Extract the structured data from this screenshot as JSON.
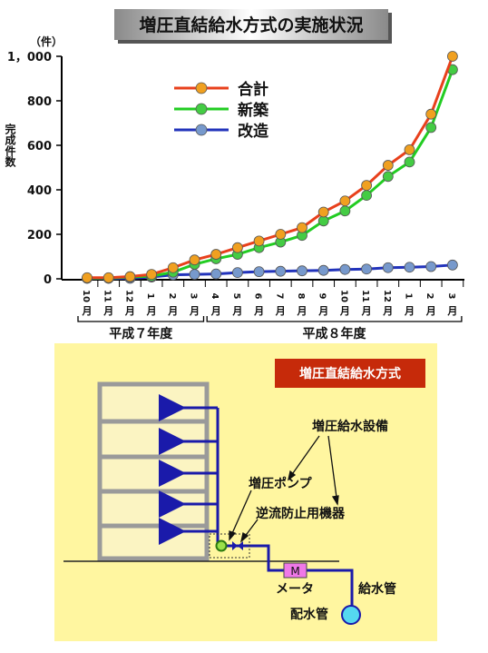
{
  "chart_data": {
    "type": "line",
    "title": "増圧直結給水方式の実施状況",
    "unit": "（件）",
    "ylabel": "完成件数",
    "ylim": [
      0,
      1000
    ],
    "yticks": [
      "0",
      "200",
      "400",
      "600",
      "800",
      "1，000"
    ],
    "ytick_values": [
      0,
      200,
      400,
      600,
      800,
      1000
    ],
    "categories": [
      {
        "num": "10",
        "suffix": "月"
      },
      {
        "num": "11",
        "suffix": "月"
      },
      {
        "num": "12",
        "suffix": "月"
      },
      {
        "num": "1",
        "suffix": "月"
      },
      {
        "num": "2",
        "suffix": "月"
      },
      {
        "num": "3",
        "suffix": "月"
      },
      {
        "num": "4",
        "suffix": "月"
      },
      {
        "num": "5",
        "suffix": "月"
      },
      {
        "num": "6",
        "suffix": "月"
      },
      {
        "num": "7",
        "suffix": "月"
      },
      {
        "num": "8",
        "suffix": "月"
      },
      {
        "num": "9",
        "suffix": "月"
      },
      {
        "num": "10",
        "suffix": "月"
      },
      {
        "num": "11",
        "suffix": "月"
      },
      {
        "num": "12",
        "suffix": "月"
      },
      {
        "num": "1",
        "suffix": "月"
      },
      {
        "num": "2",
        "suffix": "月"
      },
      {
        "num": "3",
        "suffix": "月"
      }
    ],
    "periods": [
      {
        "label": "平成７年度",
        "from": 0,
        "to": 5
      },
      {
        "label": "平成８年度",
        "from": 6,
        "to": 17
      }
    ],
    "series": [
      {
        "name": "合計",
        "line": "#e8401c",
        "marker": "#f0a020",
        "values": [
          5,
          5,
          10,
          20,
          50,
          85,
          110,
          140,
          170,
          200,
          230,
          300,
          350,
          420,
          510,
          580,
          740,
          1000
        ]
      },
      {
        "name": "新築",
        "line": "#22cc22",
        "marker": "#44cc44",
        "values": [
          3,
          3,
          8,
          12,
          30,
          65,
          90,
          110,
          140,
          165,
          195,
          260,
          305,
          375,
          460,
          525,
          680,
          940
        ]
      },
      {
        "name": "改造",
        "line": "#2233bb",
        "marker": "#7799cc",
        "values": [
          2,
          2,
          2,
          8,
          18,
          20,
          22,
          28,
          32,
          34,
          36,
          38,
          42,
          44,
          50,
          52,
          55,
          62
        ]
      }
    ]
  },
  "diagram": {
    "title": "増圧直結給水方式",
    "labels": {
      "equipment": "増圧給水設備",
      "pump": "増圧ポンプ",
      "backflow": "逆流防止用機器",
      "meter_symbol": "M",
      "meter": "メータ",
      "supply_pipe": "給水管",
      "main_pipe": "配水管"
    }
  }
}
